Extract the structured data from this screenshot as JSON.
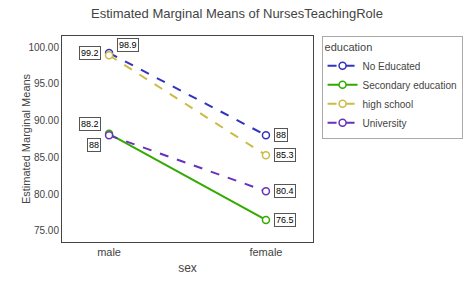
{
  "chart_data": {
    "type": "line",
    "title": "Estimated Marginal Means of NursesTeachingRole",
    "xlabel": "sex",
    "ylabel": "Estimated Marginal Means",
    "categories": [
      "male",
      "female"
    ],
    "series": [
      {
        "name": "No Educated",
        "color": "#3333bb",
        "line_style": "dashed",
        "marker": "circle",
        "values": [
          99.2,
          88.0
        ]
      },
      {
        "name": "Secondary education",
        "color": "#33aa00",
        "line_style": "solid",
        "marker": "circle",
        "values": [
          88.2,
          76.5
        ]
      },
      {
        "name": "high school",
        "color": "#ccbb44",
        "line_style": "dashed",
        "marker": "circle",
        "values": [
          98.9,
          85.3
        ]
      },
      {
        "name": "University",
        "color": "#6633bb",
        "line_style": "dashed",
        "marker": "circle",
        "values": [
          88.0,
          80.4
        ]
      }
    ],
    "ylim": [
      73.5,
      101.5
    ],
    "yticks": [
      {
        "value": 75.0,
        "label": "75.00"
      },
      {
        "value": 80.0,
        "label": "80.00"
      },
      {
        "value": 85.0,
        "label": "85.00"
      },
      {
        "value": 90.0,
        "label": "90.00"
      },
      {
        "value": 95.0,
        "label": "95.00"
      },
      {
        "value": 100.0,
        "label": "100.00"
      }
    ],
    "grid": false,
    "legend": "right",
    "legend_title": "education",
    "data_labels": true
  }
}
